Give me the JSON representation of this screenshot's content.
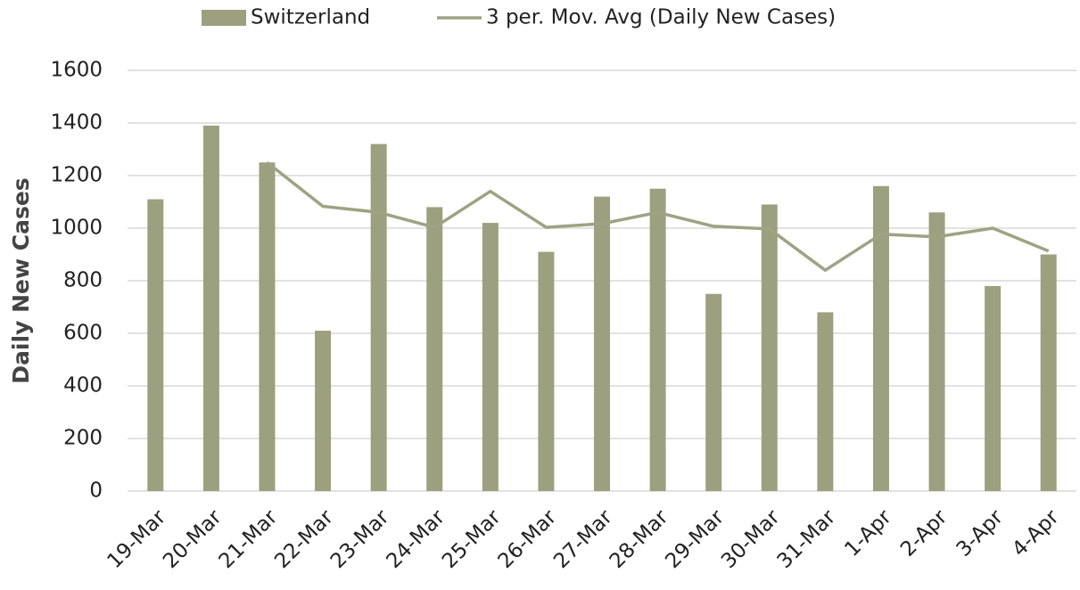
{
  "chart_data": {
    "type": "bar",
    "y_label": "Daily New Cases",
    "categories": [
      "19-Mar",
      "20-Mar",
      "21-Mar",
      "22-Mar",
      "23-Mar",
      "24-Mar",
      "25-Mar",
      "26-Mar",
      "27-Mar",
      "28-Mar",
      "29-Mar",
      "30-Mar",
      "31-Mar",
      "1-Apr",
      "2-Apr",
      "3-Apr",
      "4-Apr"
    ],
    "series": [
      {
        "name": "Switzerland",
        "type": "bar",
        "color": "#9da07f",
        "values": [
          1110,
          1390,
          1250,
          610,
          1320,
          1080,
          1020,
          910,
          1120,
          1150,
          750,
          1090,
          680,
          1160,
          1060,
          780,
          900
        ]
      },
      {
        "name": "3 per. Mov. Avg (Daily New Cases)",
        "type": "line",
        "color": "#9da383",
        "values": [
          null,
          null,
          1250,
          1083,
          1060,
          1003,
          1140,
          1003,
          1017,
          1060,
          1007,
          997,
          840,
          977,
          967,
          1000,
          913
        ]
      }
    ],
    "ylim": [
      0,
      1600
    ],
    "yticks": [
      0,
      200,
      400,
      600,
      800,
      1000,
      1200,
      1400,
      1600
    ],
    "grid": true,
    "legend": "top"
  }
}
